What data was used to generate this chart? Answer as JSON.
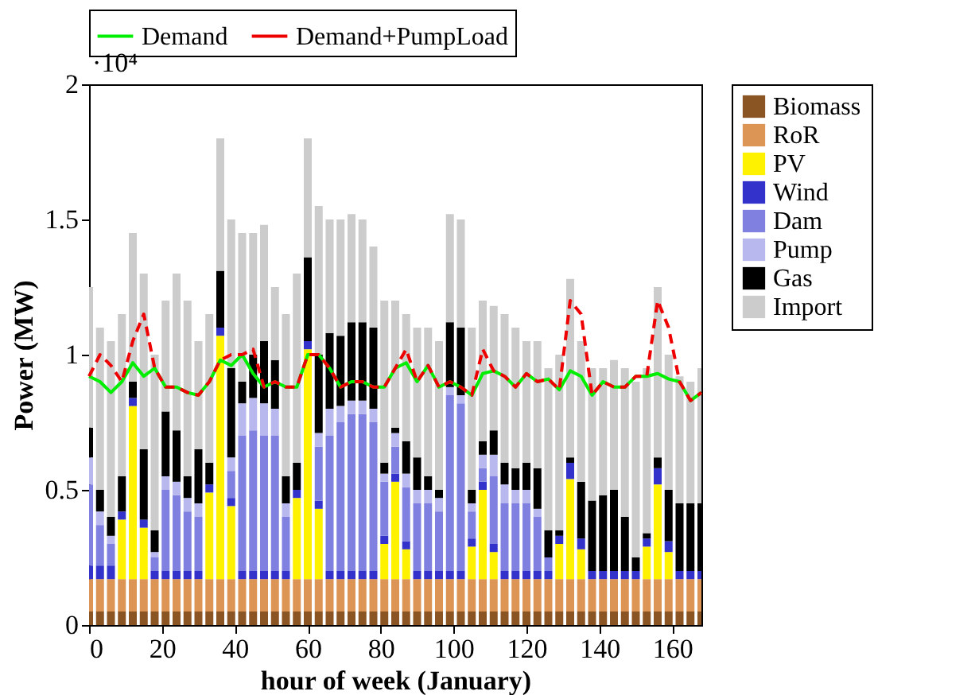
{
  "chart_data": {
    "type": "bar",
    "stacked": true,
    "xlabel": "hour of week (January)",
    "ylabel": "Power (MW)",
    "annotations": [
      "·10⁴"
    ],
    "x": [
      0,
      3,
      6,
      9,
      12,
      15,
      18,
      21,
      24,
      27,
      30,
      33,
      36,
      39,
      42,
      45,
      48,
      51,
      54,
      57,
      60,
      63,
      66,
      69,
      72,
      75,
      78,
      81,
      84,
      87,
      90,
      93,
      96,
      99,
      102,
      105,
      108,
      111,
      114,
      117,
      120,
      123,
      126,
      129,
      132,
      135,
      138,
      141,
      144,
      147,
      150,
      153,
      156,
      159,
      162,
      165,
      168
    ],
    "xlim": [
      0,
      168
    ],
    "xticks": [
      0,
      20,
      40,
      60,
      80,
      100,
      120,
      140,
      160
    ],
    "ylim": [
      0,
      2
    ],
    "yticks": [
      0,
      0.5,
      1,
      1.5,
      2
    ],
    "grid": false,
    "legend": "right",
    "series": [
      {
        "name": "Biomass",
        "color": "#8b5523",
        "values": [
          0.05,
          0.05,
          0.05,
          0.05,
          0.05,
          0.05,
          0.05,
          0.05,
          0.05,
          0.05,
          0.05,
          0.05,
          0.05,
          0.05,
          0.05,
          0.05,
          0.05,
          0.05,
          0.05,
          0.05,
          0.05,
          0.05,
          0.05,
          0.05,
          0.05,
          0.05,
          0.05,
          0.05,
          0.05,
          0.05,
          0.05,
          0.05,
          0.05,
          0.05,
          0.05,
          0.05,
          0.05,
          0.05,
          0.05,
          0.05,
          0.05,
          0.05,
          0.05,
          0.05,
          0.05,
          0.05,
          0.05,
          0.05,
          0.05,
          0.05,
          0.05,
          0.05,
          0.05,
          0.05,
          0.05,
          0.05,
          0.05
        ]
      },
      {
        "name": "RoR",
        "color": "#dd9555",
        "values": [
          0.12,
          0.12,
          0.12,
          0.12,
          0.12,
          0.12,
          0.12,
          0.12,
          0.12,
          0.12,
          0.12,
          0.12,
          0.12,
          0.12,
          0.12,
          0.12,
          0.12,
          0.12,
          0.12,
          0.12,
          0.12,
          0.12,
          0.12,
          0.12,
          0.12,
          0.12,
          0.12,
          0.12,
          0.12,
          0.12,
          0.12,
          0.12,
          0.12,
          0.12,
          0.12,
          0.12,
          0.12,
          0.12,
          0.12,
          0.12,
          0.12,
          0.12,
          0.12,
          0.12,
          0.12,
          0.12,
          0.12,
          0.12,
          0.12,
          0.12,
          0.12,
          0.12,
          0.12,
          0.12,
          0.12,
          0.12,
          0.12
        ]
      },
      {
        "name": "PV",
        "color": "#fff200",
        "values": [
          0,
          0,
          0,
          0.22,
          0.64,
          0.19,
          0,
          0,
          0,
          0,
          0,
          0.32,
          0.9,
          0.27,
          0,
          0,
          0,
          0,
          0,
          0.3,
          0.85,
          0.26,
          0,
          0,
          0,
          0,
          0,
          0.13,
          0.36,
          0.11,
          0,
          0,
          0,
          0,
          0,
          0.12,
          0.33,
          0.1,
          0,
          0,
          0,
          0,
          0,
          0.13,
          0.37,
          0.11,
          0,
          0,
          0,
          0,
          0,
          0.12,
          0.35,
          0.1,
          0,
          0,
          0
        ]
      },
      {
        "name": "Wind",
        "color": "#3333cc",
        "values": [
          0.05,
          0.05,
          0.05,
          0.03,
          0.03,
          0.03,
          0.03,
          0.03,
          0.03,
          0.03,
          0.03,
          0.03,
          0.03,
          0.03,
          0.03,
          0.03,
          0.03,
          0.03,
          0.03,
          0.03,
          0.03,
          0.03,
          0.03,
          0.03,
          0.03,
          0.03,
          0.03,
          0.03,
          0.03,
          0.03,
          0.03,
          0.03,
          0.03,
          0.03,
          0.03,
          0.03,
          0.03,
          0.03,
          0.03,
          0.03,
          0.03,
          0.03,
          0.03,
          0.03,
          0.06,
          0.04,
          0.03,
          0.03,
          0.03,
          0.03,
          0.03,
          0.03,
          0.06,
          0.04,
          0.03,
          0.03,
          0.03
        ]
      },
      {
        "name": "Dam",
        "color": "#8080e0",
        "values": [
          0.3,
          0.15,
          0.08,
          0,
          0,
          0,
          0.05,
          0.3,
          0.28,
          0.22,
          0.2,
          0,
          0,
          0.1,
          0.5,
          0.52,
          0.5,
          0.5,
          0.2,
          0,
          0,
          0.2,
          0.5,
          0.55,
          0.58,
          0.58,
          0.55,
          0.2,
          0.1,
          0.2,
          0.25,
          0.25,
          0.22,
          0.65,
          0.62,
          0.1,
          0.05,
          0.25,
          0.25,
          0.25,
          0.25,
          0.2,
          0.05,
          0,
          0,
          0,
          0,
          0,
          0,
          0,
          0,
          0,
          0,
          0,
          0,
          0,
          0
        ]
      },
      {
        "name": "Pump",
        "color": "#b8b8ee",
        "values": [
          0.1,
          0.05,
          0.03,
          0,
          0,
          0,
          0.02,
          0.05,
          0.05,
          0.05,
          0.05,
          0,
          0,
          0.05,
          0.12,
          0.12,
          0.12,
          0.1,
          0.05,
          0,
          0,
          0.05,
          0.1,
          0.06,
          0.05,
          0.05,
          0.05,
          0.03,
          0.05,
          0.05,
          0.05,
          0.05,
          0.05,
          0.03,
          0.03,
          0.03,
          0.05,
          0.08,
          0.07,
          0.05,
          0.05,
          0.03,
          0,
          0,
          0,
          0,
          0,
          0,
          0,
          0,
          0,
          0,
          0,
          0,
          0,
          0,
          0
        ]
      },
      {
        "name": "Gas",
        "color": "#000000",
        "values": [
          0.11,
          0.08,
          0.07,
          0.13,
          0.06,
          0.26,
          0.08,
          0.24,
          0.19,
          0.08,
          0.2,
          0.08,
          0.21,
          0.33,
          0.08,
          0.16,
          0.23,
          0.18,
          0.1,
          0.1,
          0.31,
          0.29,
          0.28,
          0.26,
          0.29,
          0.29,
          0.3,
          0.04,
          0.02,
          0.12,
          0.12,
          0.05,
          0.03,
          0.24,
          0.25,
          0.05,
          0.05,
          0.09,
          0.08,
          0.08,
          0.1,
          0.15,
          0.1,
          0.02,
          0.02,
          0.21,
          0.26,
          0.28,
          0.3,
          0.2,
          0.05,
          0.02,
          0.04,
          0.19,
          0.25,
          0.25,
          0.25
        ]
      },
      {
        "name": "Import",
        "color": "#cccccc",
        "values": [
          0.52,
          0.6,
          0.65,
          0.6,
          0.55,
          0.65,
          0.65,
          0.41,
          0.58,
          0.65,
          0.4,
          0.55,
          0.49,
          0.55,
          0.55,
          0.45,
          0.43,
          0.27,
          0.6,
          0.7,
          0.44,
          0.55,
          0.42,
          0.43,
          0.4,
          0.38,
          0.3,
          0.6,
          0.47,
          0.47,
          0.48,
          0.55,
          0.55,
          0.4,
          0.4,
          0.6,
          0.52,
          0.46,
          0.55,
          0.52,
          0.45,
          0.47,
          0.6,
          0.65,
          0.66,
          0.52,
          0.49,
          0.47,
          0.48,
          0.55,
          0.65,
          0.61,
          0.63,
          0.5,
          0.47,
          0.45,
          0.5
        ]
      },
      {
        "name": "Demand",
        "type": "line",
        "line_style": "solid",
        "color": "#00ee00",
        "values": [
          0.92,
          0.9,
          0.86,
          0.9,
          0.97,
          0.92,
          0.95,
          0.88,
          0.88,
          0.86,
          0.85,
          0.9,
          0.98,
          0.96,
          1.0,
          0.93,
          0.88,
          0.9,
          0.88,
          0.88,
          1.0,
          1.0,
          0.95,
          0.88,
          0.9,
          0.9,
          0.88,
          0.88,
          0.95,
          0.97,
          0.9,
          0.96,
          0.88,
          0.9,
          0.88,
          0.85,
          0.93,
          0.94,
          0.92,
          0.88,
          0.93,
          0.9,
          0.91,
          0.87,
          0.94,
          0.92,
          0.85,
          0.9,
          0.88,
          0.88,
          0.92,
          0.92,
          0.93,
          0.91,
          0.9,
          0.83,
          0.86
        ]
      },
      {
        "name": "Demand+PumpLoad",
        "type": "line",
        "line_style": "dashed",
        "color": "#ee0000",
        "values": [
          0.92,
          1.0,
          0.96,
          0.9,
          1.05,
          1.15,
          0.95,
          0.88,
          0.88,
          0.86,
          0.85,
          0.9,
          0.98,
          1.0,
          1.0,
          1.02,
          0.88,
          0.9,
          0.88,
          0.88,
          1.0,
          1.0,
          0.95,
          0.88,
          0.9,
          0.9,
          0.88,
          0.88,
          0.95,
          1.02,
          0.9,
          0.96,
          0.88,
          0.9,
          0.88,
          0.85,
          1.02,
          0.94,
          0.92,
          0.88,
          0.93,
          0.9,
          0.91,
          0.87,
          1.2,
          1.15,
          0.85,
          0.9,
          0.88,
          0.88,
          0.92,
          0.92,
          1.2,
          1.1,
          0.9,
          0.83,
          0.86
        ]
      }
    ]
  }
}
